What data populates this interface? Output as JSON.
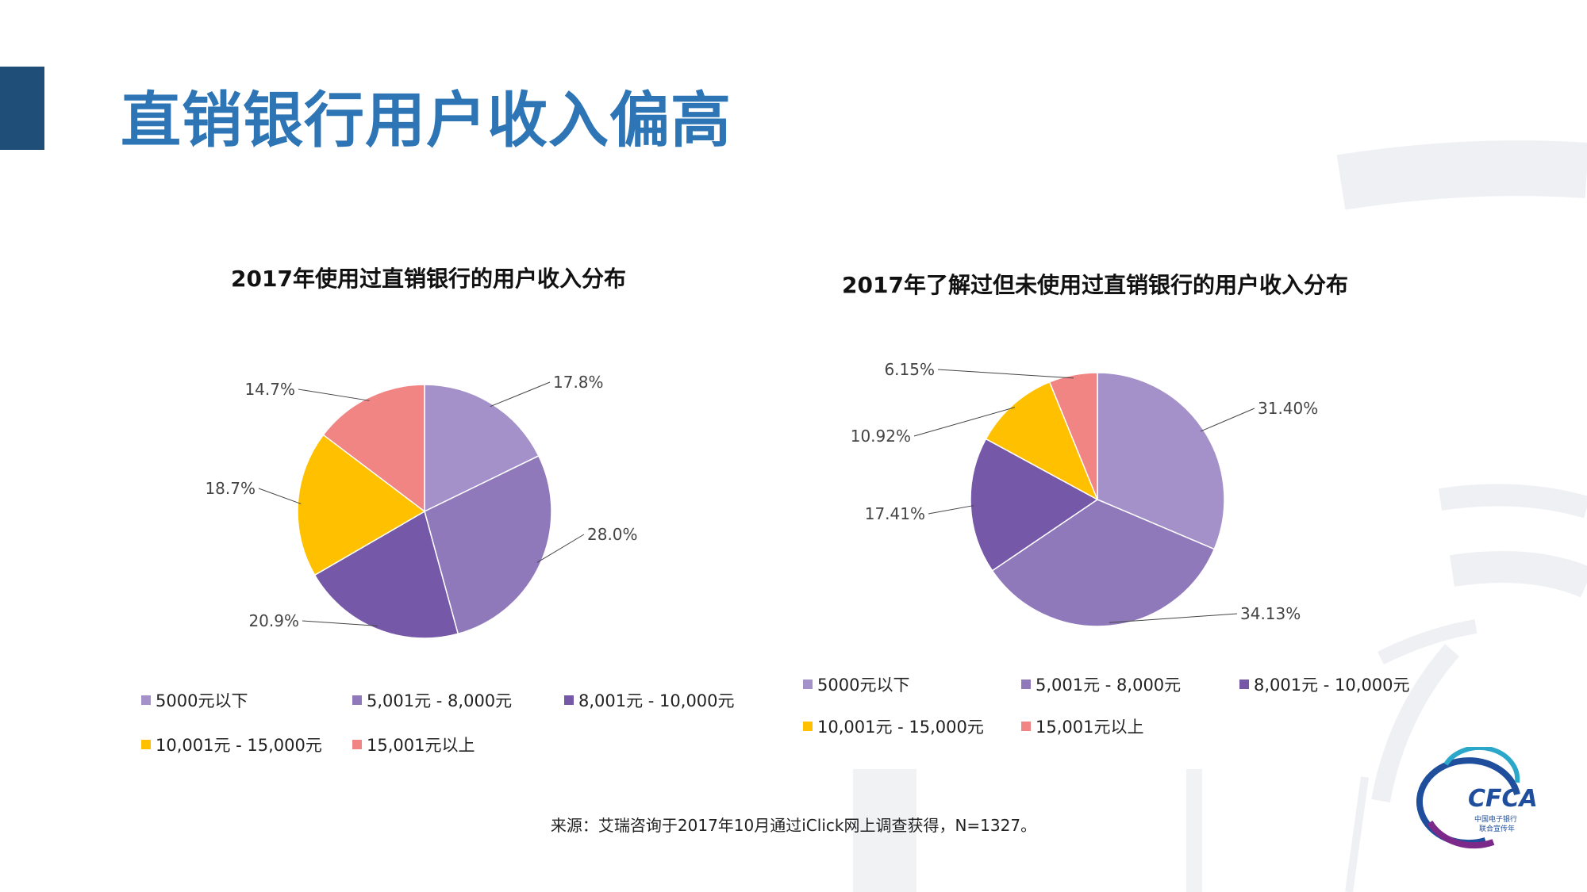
{
  "page": {
    "title": "直销银行用户收入偏高",
    "source": "来源：艾瑞咨询于2017年10月通过iClick网上调查获得，N=1327。",
    "logo": {
      "text": "CFCA",
      "sub_line1": "中国电子银行",
      "sub_line2": "联合宣传年"
    }
  },
  "colors": {
    "accent_bar": "#1f4e79",
    "title": "#2e75b6",
    "slice_1": "#a491c9",
    "slice_2": "#8f79ba",
    "slice_3": "#7658a8",
    "slice_4": "#ffc000",
    "slice_5": "#f08584"
  },
  "chart_data": [
    {
      "type": "pie",
      "title": "2017年使用过直销银行的用户收入分布",
      "categories": [
        "5000元以下",
        "5,001元 - 8,000元",
        "8,001元 - 10,000元",
        "10,001元 - 15,000元",
        "15,001元以上"
      ],
      "values": [
        17.8,
        28.0,
        20.9,
        18.7,
        14.7
      ],
      "data_labels": [
        "17.8%",
        "28.0%",
        "20.9%",
        "18.7%",
        "14.7%"
      ],
      "legend_position": "bottom"
    },
    {
      "type": "pie",
      "title": "2017年了解过但未使用过直销银行的用户收入分布",
      "categories": [
        "5000元以下",
        "5,001元 - 8,000元",
        "8,001元 - 10,000元",
        "10,001元 - 15,000元",
        "15,001元以上"
      ],
      "values": [
        31.4,
        34.13,
        17.41,
        10.92,
        6.15
      ],
      "data_labels": [
        "31.40%",
        "34.13%",
        "17.41%",
        "10.92%",
        "6.15%"
      ],
      "legend_position": "bottom"
    }
  ]
}
